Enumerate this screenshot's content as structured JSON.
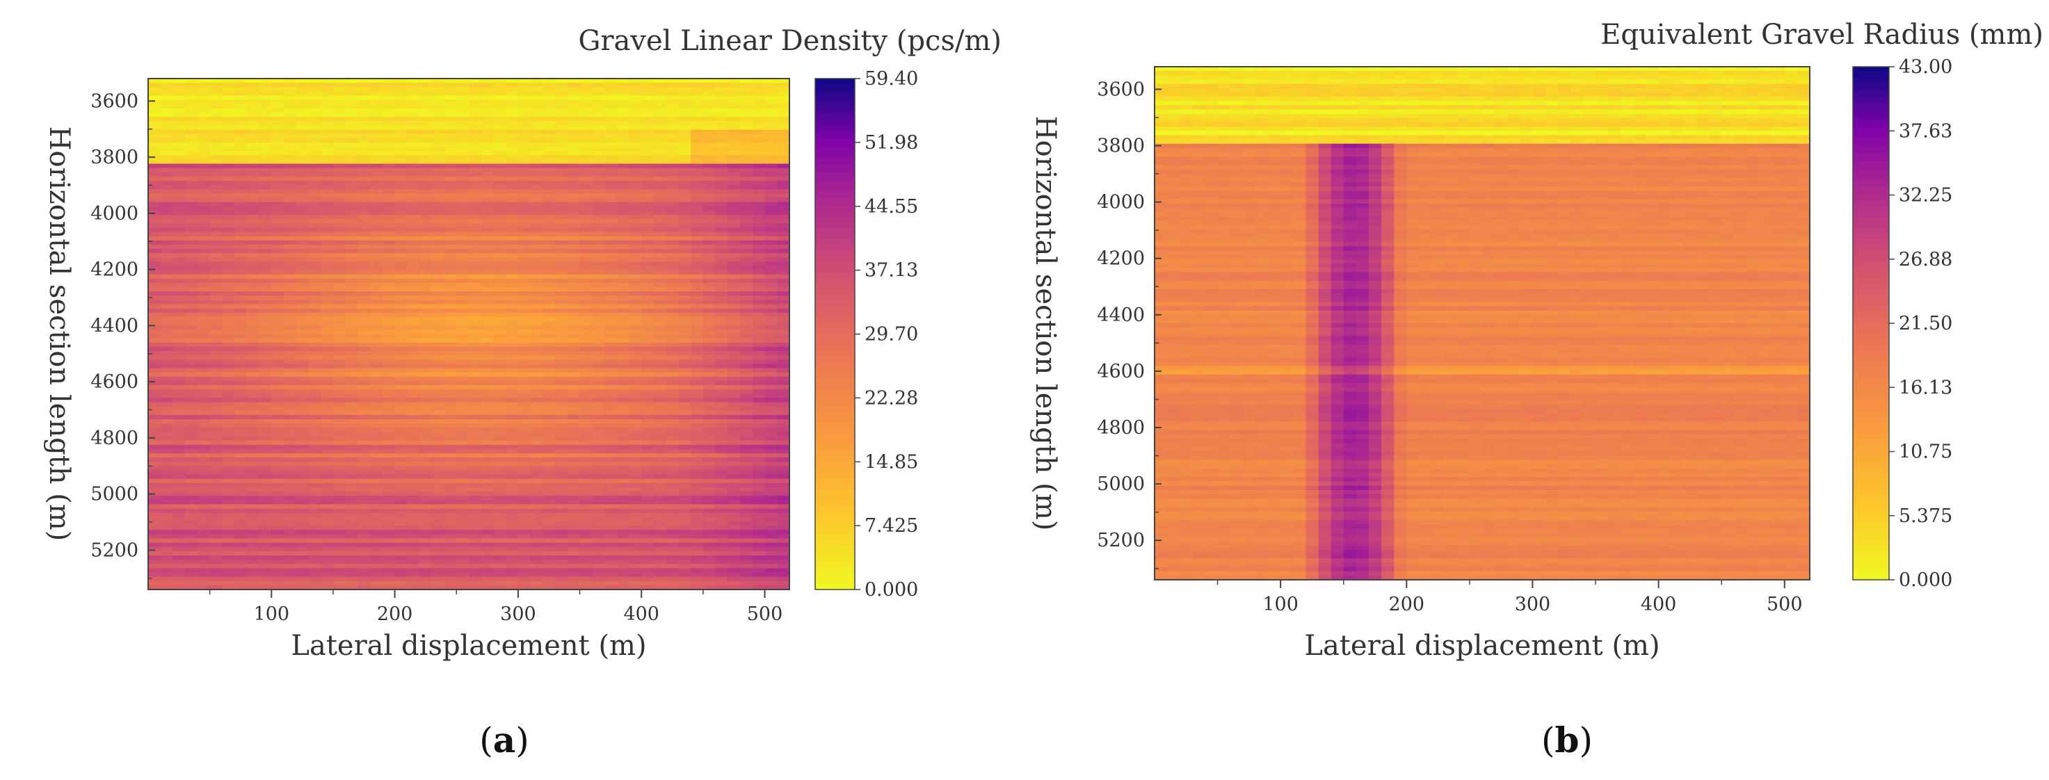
{
  "chart_data": [
    {
      "type": "heatmap",
      "panel_label": "(a)",
      "panel_letter": "a",
      "title": "Gravel Linear Density (pcs/m)",
      "xlabel": "Lateral displacement (m)",
      "ylabel": "Horizontal section length (m)",
      "xlim": [
        0,
        520
      ],
      "ylim": [
        3520,
        5340
      ],
      "x_ticks": [
        100,
        200,
        300,
        400,
        500
      ],
      "y_ticks": [
        3600,
        3800,
        4000,
        4200,
        4400,
        4600,
        4800,
        5000,
        5200
      ],
      "colorbar": {
        "title": "Gravel Linear Density (pcs/m)",
        "min": 0.0,
        "max": 59.4,
        "tick_labels": [
          "59.40",
          "51.98",
          "44.55",
          "37.13",
          "29.70",
          "22.28",
          "14.85",
          "7.425",
          "0.000"
        ],
        "colormap": "plasma_r"
      },
      "pattern": {
        "low_band_y": [
          3520,
          3830
        ],
        "low_band_value": 4,
        "center_bulge_x": 270,
        "center_bulge_value": 20,
        "edge_value": 36,
        "right_edge_value": 42
      }
    },
    {
      "type": "heatmap",
      "panel_label": "(b)",
      "panel_letter": "b",
      "title": "Equivalent Gravel Radius (mm)",
      "xlabel": "Lateral displacement (m)",
      "ylabel": "Horizontal section length (m)",
      "xlim": [
        0,
        520
      ],
      "ylim": [
        3520,
        5340
      ],
      "x_ticks": [
        100,
        200,
        300,
        400,
        500
      ],
      "y_ticks": [
        3600,
        3800,
        4000,
        4200,
        4400,
        4600,
        4800,
        5000,
        5200
      ],
      "colorbar": {
        "title": "Equivalent Gravel Radius (mm)",
        "min": 0.0,
        "max": 43.0,
        "tick_labels": [
          "43.00",
          "37.63",
          "32.25",
          "26.88",
          "21.50",
          "16.13",
          "10.75",
          "5.375",
          "0.000"
        ],
        "colormap": "plasma_r"
      },
      "pattern": {
        "low_band_y": [
          3520,
          3800
        ],
        "low_band_value": 3,
        "background_value": 17,
        "stripe_center_x": 158,
        "stripe_half_width_x": 40,
        "stripe_value": 33
      }
    }
  ]
}
